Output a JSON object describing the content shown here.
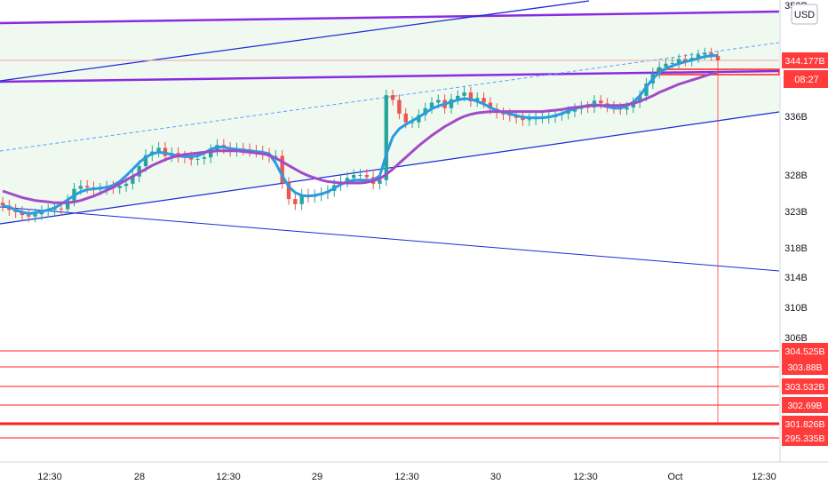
{
  "header": {
    "currency_label": "USD"
  },
  "countdown_label": "08:27",
  "colors": {
    "up": "#26a69a",
    "down": "#ef5350",
    "ema_fast": "#2a9be0",
    "ema_slow": "#a14bc8",
    "trend_line": "#1e2bd6",
    "purple_line": "#8a2be2",
    "red_level": "#ff1f1f",
    "fill": "#e8f6e8",
    "axis_text": "#131722",
    "price_tag": "#ff3b3b",
    "dashed": "#5aa0ff"
  },
  "chart_data": {
    "type": "candlestick",
    "title": "",
    "xlabel": "",
    "ylabel": "",
    "ylim": [
      292,
      353
    ],
    "x_ticks": [
      "12:30",
      "28",
      "12:30",
      "29",
      "12:30",
      "30",
      "12:30",
      "Oct",
      "12:30"
    ],
    "y_ticks": [
      353,
      336,
      328,
      323,
      318,
      314,
      310,
      306
    ],
    "price_tags": [
      {
        "label": "344.177B",
        "value": 344.177,
        "kind": "last_price"
      },
      {
        "label": "304.525B",
        "value": 304.525,
        "kind": "level"
      },
      {
        "label": "303.88B",
        "value": 303.88,
        "kind": "level"
      },
      {
        "label": "303.532B",
        "value": 303.532,
        "kind": "level"
      },
      {
        "label": "302.69B",
        "value": 302.69,
        "kind": "level"
      },
      {
        "label": "301.826B",
        "value": 301.826,
        "kind": "level"
      },
      {
        "label": "295.335B",
        "value": 295.335,
        "kind": "level"
      }
    ],
    "close_series": [
      323.8,
      323.2,
      322.9,
      322.5,
      322.3,
      322.6,
      323.0,
      323.2,
      323.4,
      323.3,
      324.5,
      326.1,
      326.5,
      326.3,
      326.0,
      326.1,
      326.4,
      326.2,
      326.5,
      326.8,
      327.8,
      329.2,
      330.7,
      331.2,
      331.7,
      330.6,
      331.0,
      330.5,
      330.4,
      330.1,
      330.2,
      330.4,
      331.4,
      332.1,
      331.7,
      331.3,
      331.6,
      331.5,
      331.3,
      331.2,
      330.9,
      330.5,
      330.6,
      326.9,
      324.7,
      324.0,
      325.3,
      325.0,
      325.2,
      325.5,
      325.8,
      326.6,
      327.1,
      327.6,
      328.0,
      328.0,
      327.7,
      326.8,
      327.3,
      339.1,
      338.4,
      336.4,
      335.2,
      335.2,
      336.2,
      337.2,
      338.0,
      338.4,
      337.2,
      338.5,
      339.0,
      339.5,
      338.2,
      338.7,
      338.0,
      337.1,
      336.5,
      336.3,
      336.1,
      335.8,
      335.5,
      335.6,
      335.8,
      335.8,
      335.9,
      336.2,
      336.4,
      336.7,
      337.1,
      337.4,
      337.3,
      338.3,
      337.9,
      337.4,
      337.2,
      337.0,
      337.3,
      338.0,
      339.0,
      340.8,
      342.3,
      343.2,
      343.7,
      343.8,
      344.4,
      344.1,
      344.6,
      345.1,
      345.4,
      344.9,
      344.177
    ],
    "series": [
      {
        "name": "",
        "kind": "ema_fast",
        "values": [
          323.8,
          323.6,
          323.2,
          322.9,
          322.7,
          322.8,
          323.0,
          323.2,
          323.5,
          324.0,
          324.6,
          325.2,
          325.7,
          326.0,
          326.1,
          326.2,
          326.3,
          326.6,
          327.1,
          327.9,
          328.8,
          329.7,
          330.4,
          330.9,
          331.1,
          331.0,
          330.8,
          330.6,
          330.5,
          330.5,
          330.6,
          331.0,
          331.5,
          331.8,
          331.8,
          331.6,
          331.5,
          331.4,
          331.3,
          331.2,
          331.1,
          330.9,
          329.6,
          327.9,
          326.4,
          325.6,
          325.2,
          325.1,
          325.2,
          325.4,
          325.7,
          326.2,
          326.7,
          327.1,
          327.3,
          327.3,
          327.3,
          327.3,
          327.9,
          330.8,
          333.2,
          334.3,
          334.9,
          335.4,
          335.9,
          336.5,
          337.1,
          337.5,
          337.8,
          338.1,
          338.4,
          338.6,
          338.5,
          338.2,
          337.8,
          337.3,
          336.9,
          336.6,
          336.4,
          336.1,
          335.9,
          335.8,
          335.8,
          335.8,
          335.9,
          336.1,
          336.4,
          336.8,
          337.1,
          337.4,
          337.6,
          337.7,
          337.6,
          337.4,
          337.2,
          337.2,
          337.5,
          338.1,
          339.0,
          340.3,
          341.5,
          342.4,
          343.0,
          343.4,
          343.7,
          344.0,
          344.2,
          344.5,
          344.8,
          344.9,
          345.0
        ]
      },
      {
        "name": "",
        "kind": "ema_slow",
        "values": [
          325.8,
          325.5,
          325.2,
          324.9,
          324.7,
          324.5,
          324.4,
          324.3,
          324.2,
          324.2,
          324.2,
          324.3,
          324.5,
          324.8,
          325.1,
          325.5,
          325.9,
          326.3,
          326.8,
          327.3,
          327.8,
          328.3,
          328.8,
          329.3,
          329.7,
          330.1,
          330.4,
          330.6,
          330.8,
          330.9,
          331.0,
          331.1,
          331.2,
          331.3,
          331.3,
          331.3,
          331.3,
          331.2,
          331.1,
          331.0,
          330.9,
          330.7,
          330.3,
          329.8,
          329.3,
          328.8,
          328.3,
          327.9,
          327.6,
          327.3,
          327.1,
          327.0,
          326.9,
          326.9,
          326.9,
          326.9,
          327.0,
          327.2,
          327.5,
          328.1,
          328.8,
          329.6,
          330.4,
          331.2,
          332.0,
          332.7,
          333.4,
          334.0,
          334.6,
          335.1,
          335.6,
          336.0,
          336.3,
          336.5,
          336.6,
          336.7,
          336.7,
          336.7,
          336.7,
          336.7,
          336.7,
          336.7,
          336.7,
          336.7,
          336.8,
          336.9,
          337.0,
          337.2,
          337.3,
          337.4,
          337.5,
          337.6,
          337.6,
          337.6,
          337.6,
          337.6,
          337.7,
          337.9,
          338.2,
          338.6,
          339.0,
          339.5,
          339.9,
          340.3,
          340.7,
          341.0,
          341.3,
          341.6,
          341.9,
          342.2,
          342.5
        ]
      }
    ],
    "grid": false,
    "legend": "none"
  }
}
